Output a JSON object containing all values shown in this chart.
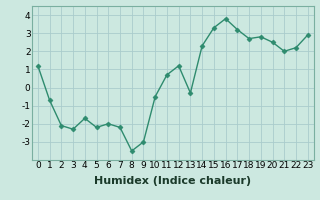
{
  "x": [
    0,
    1,
    2,
    3,
    4,
    5,
    6,
    7,
    8,
    9,
    10,
    11,
    12,
    13,
    14,
    15,
    16,
    17,
    18,
    19,
    20,
    21,
    22,
    23
  ],
  "y": [
    1.2,
    -0.7,
    -2.1,
    -2.3,
    -1.7,
    -2.2,
    -2.0,
    -2.2,
    -3.5,
    -3.0,
    -0.5,
    0.7,
    1.2,
    -0.3,
    2.3,
    3.3,
    3.8,
    3.2,
    2.7,
    2.8,
    2.5,
    2.0,
    2.2,
    2.9
  ],
  "line_color": "#2e8b6e",
  "marker_color": "#2e8b6e",
  "background_color": "#cce8e0",
  "grid_color": "#aacccc",
  "xlabel": "Humidex (Indice chaleur)",
  "xlabel_fontsize": 8,
  "ylim": [
    -4,
    4.5
  ],
  "xlim": [
    -0.5,
    23.5
  ],
  "yticks": [
    -3,
    -2,
    -1,
    0,
    1,
    2,
    3,
    4
  ],
  "xticks": [
    0,
    1,
    2,
    3,
    4,
    5,
    6,
    7,
    8,
    9,
    10,
    11,
    12,
    13,
    14,
    15,
    16,
    17,
    18,
    19,
    20,
    21,
    22,
    23
  ],
  "tick_fontsize": 6.5,
  "line_width": 1.0,
  "marker_size": 2.5
}
